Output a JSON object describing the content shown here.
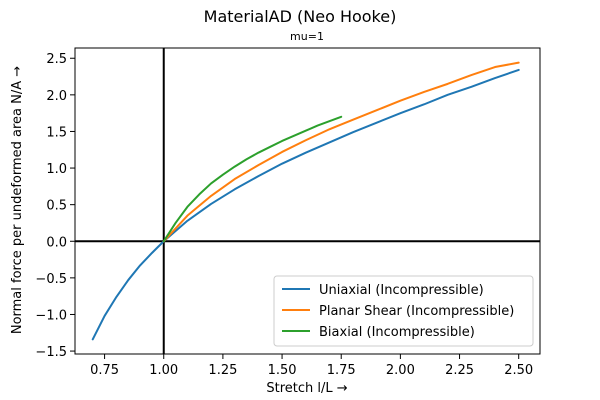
{
  "chart_data": {
    "type": "line",
    "title": "MaterialAD (Neo Hooke)",
    "subtitle": "mu=1",
    "xlabel": "Stretch l/L  →",
    "ylabel": "Normal force per undeformed area N/A  →",
    "xlim": [
      0.625,
      2.59
    ],
    "ylim": [
      -1.54,
      2.64
    ],
    "xticks": [
      0.75,
      1.0,
      1.25,
      1.5,
      1.75,
      2.0,
      2.25,
      2.5
    ],
    "xtick_labels": [
      "0.75",
      "1.00",
      "1.25",
      "1.50",
      "1.75",
      "2.00",
      "2.25",
      "2.50"
    ],
    "yticks": [
      -1.5,
      -1.0,
      -0.5,
      0.0,
      0.5,
      1.0,
      1.5,
      2.0,
      2.5
    ],
    "ytick_labels": [
      "−1.5",
      "−1.0",
      "−0.5",
      "0.0",
      "0.5",
      "1.0",
      "1.5",
      "2.0",
      "2.5"
    ],
    "reference_lines": {
      "x": 1.0,
      "y": 0.0
    },
    "grid": false,
    "legend_position": "lower-right",
    "series": [
      {
        "name": "Uniaxial (Incompressible)",
        "color": "#1f77b4",
        "x": [
          0.7,
          0.75,
          0.8,
          0.85,
          0.9,
          0.95,
          1.0,
          1.1,
          1.2,
          1.3,
          1.4,
          1.5,
          1.6,
          1.7,
          1.8,
          1.9,
          2.0,
          2.1,
          2.2,
          2.3,
          2.4,
          2.5
        ],
        "y": [
          -1.34,
          -1.02,
          -0.76,
          -0.53,
          -0.33,
          -0.16,
          0.0,
          0.28,
          0.51,
          0.71,
          0.89,
          1.06,
          1.21,
          1.35,
          1.49,
          1.62,
          1.75,
          1.87,
          2.0,
          2.11,
          2.23,
          2.34
        ]
      },
      {
        "name": "Planar Shear (Incompressible)",
        "color": "#ff7f0e",
        "x": [
          1.0,
          1.1,
          1.2,
          1.3,
          1.4,
          1.5,
          1.6,
          1.7,
          1.8,
          1.9,
          2.0,
          2.1,
          2.2,
          2.3,
          2.4,
          2.5
        ],
        "y": [
          0.0,
          0.35,
          0.62,
          0.85,
          1.04,
          1.22,
          1.38,
          1.53,
          1.66,
          1.79,
          1.92,
          2.04,
          2.15,
          2.27,
          2.38,
          2.44
        ]
      },
      {
        "name": "Biaxial (Incompressible)",
        "color": "#2ca02c",
        "x": [
          1.0,
          1.05,
          1.1,
          1.15,
          1.2,
          1.25,
          1.3,
          1.35,
          1.4,
          1.45,
          1.5,
          1.55,
          1.6,
          1.65,
          1.7,
          1.75
        ],
        "y": [
          0.0,
          0.25,
          0.47,
          0.64,
          0.79,
          0.91,
          1.02,
          1.12,
          1.21,
          1.29,
          1.37,
          1.44,
          1.51,
          1.58,
          1.64,
          1.7
        ]
      }
    ]
  }
}
